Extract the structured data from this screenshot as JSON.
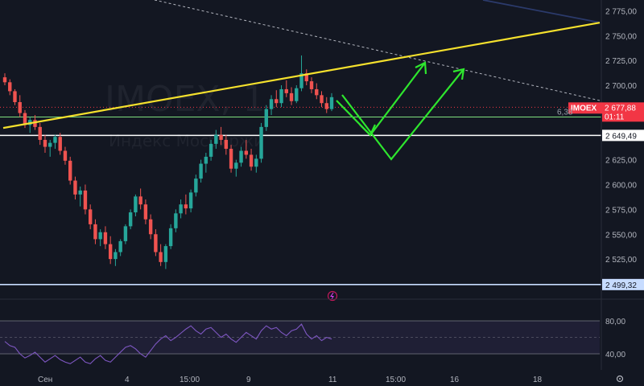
{
  "watermark": {
    "symbol": "IMOEX, 1",
    "subtitle": "Индекс Мосбиржи"
  },
  "price_axis": {
    "ticks": [
      "2 775,00",
      "2 750,00",
      "2 725,00",
      "2 700,00",
      "2 625,00",
      "2 600,00",
      "2 575,00",
      "2 550,00",
      "2 525,00"
    ],
    "tick_values": [
      2775,
      2750,
      2725,
      2700,
      2625,
      2600,
      2575,
      2550,
      2525
    ]
  },
  "rsi_axis": {
    "ticks": [
      "80,00",
      "40,00"
    ],
    "tick_values": [
      80,
      40
    ]
  },
  "time_axis": {
    "ticks": [
      "Сен",
      "4",
      "15:00",
      "9",
      "11",
      "15:00",
      "16",
      "18"
    ]
  },
  "current_price": {
    "symbol": "IMOEX",
    "value": "2 677,88",
    "countdown": "01:11",
    "value_num": 2677.88,
    "color": "#f23645"
  },
  "level_green": {
    "label": "6,38",
    "value": 2668,
    "color": "#7fe07f"
  },
  "level_white": {
    "label": "2 649,49",
    "value": 2649.49,
    "color": "#ffffff"
  },
  "level_blue": {
    "label": "2 499,32",
    "value": 2499.32,
    "color": "#c7dcff"
  },
  "settings_icon": "gear-icon",
  "event_icon": "lightning-icon",
  "colors": {
    "up": "#26a69a",
    "down": "#ef5350",
    "trendline": "#f5e12d",
    "arrows": "#2ee62e",
    "rsi": "#7e57c2",
    "dashed": "#b2b5be",
    "navy_line": "#2b3a6b"
  },
  "chart_data": {
    "type": "candlestick",
    "title": "",
    "xlabel": "",
    "ylabel": "",
    "ylim": [
      2505,
      2785
    ],
    "candles_ohlc": [
      [
        2708,
        2712,
        2700,
        2703
      ],
      [
        2703,
        2706,
        2690,
        2694
      ],
      [
        2694,
        2696,
        2680,
        2683
      ],
      [
        2683,
        2690,
        2668,
        2672
      ],
      [
        2672,
        2675,
        2657,
        2660
      ],
      [
        2660,
        2668,
        2652,
        2665
      ],
      [
        2665,
        2670,
        2655,
        2658
      ],
      [
        2658,
        2662,
        2640,
        2645
      ],
      [
        2645,
        2650,
        2632,
        2638
      ],
      [
        2638,
        2645,
        2628,
        2642
      ],
      [
        2642,
        2650,
        2636,
        2648
      ],
      [
        2648,
        2652,
        2630,
        2634
      ],
      [
        2634,
        2638,
        2620,
        2624
      ],
      [
        2624,
        2628,
        2600,
        2604
      ],
      [
        2604,
        2608,
        2585,
        2590
      ],
      [
        2590,
        2598,
        2578,
        2594
      ],
      [
        2594,
        2600,
        2570,
        2575
      ],
      [
        2575,
        2580,
        2555,
        2560
      ],
      [
        2560,
        2565,
        2540,
        2545
      ],
      [
        2545,
        2555,
        2538,
        2552
      ],
      [
        2552,
        2558,
        2535,
        2540
      ],
      [
        2540,
        2548,
        2520,
        2525
      ],
      [
        2525,
        2535,
        2518,
        2532
      ],
      [
        2532,
        2545,
        2528,
        2543
      ],
      [
        2543,
        2560,
        2540,
        2558
      ],
      [
        2558,
        2575,
        2555,
        2572
      ],
      [
        2572,
        2590,
        2568,
        2588
      ],
      [
        2588,
        2596,
        2575,
        2580
      ],
      [
        2580,
        2585,
        2560,
        2565
      ],
      [
        2565,
        2570,
        2545,
        2550
      ],
      [
        2550,
        2555,
        2528,
        2532
      ],
      [
        2532,
        2540,
        2518,
        2522
      ],
      [
        2522,
        2540,
        2515,
        2538
      ],
      [
        2538,
        2560,
        2535,
        2556
      ],
      [
        2556,
        2575,
        2552,
        2571
      ],
      [
        2571,
        2585,
        2566,
        2580
      ],
      [
        2580,
        2590,
        2570,
        2576
      ],
      [
        2576,
        2595,
        2572,
        2592
      ],
      [
        2592,
        2610,
        2588,
        2606
      ],
      [
        2606,
        2625,
        2602,
        2621
      ],
      [
        2621,
        2632,
        2612,
        2628
      ],
      [
        2628,
        2645,
        2624,
        2641
      ],
      [
        2641,
        2655,
        2636,
        2650
      ],
      [
        2650,
        2658,
        2640,
        2645
      ],
      [
        2645,
        2650,
        2630,
        2636
      ],
      [
        2636,
        2640,
        2612,
        2616
      ],
      [
        2616,
        2625,
        2608,
        2622
      ],
      [
        2622,
        2638,
        2618,
        2634
      ],
      [
        2634,
        2645,
        2626,
        2630
      ],
      [
        2630,
        2636,
        2614,
        2618
      ],
      [
        2618,
        2630,
        2612,
        2626
      ],
      [
        2626,
        2662,
        2622,
        2658
      ],
      [
        2658,
        2680,
        2654,
        2676
      ],
      [
        2676,
        2690,
        2670,
        2686
      ],
      [
        2686,
        2695,
        2678,
        2682
      ],
      [
        2682,
        2700,
        2678,
        2696
      ],
      [
        2696,
        2705,
        2688,
        2692
      ],
      [
        2692,
        2698,
        2680,
        2684
      ],
      [
        2684,
        2700,
        2682,
        2697
      ],
      [
        2697,
        2730,
        2694,
        2712
      ],
      [
        2712,
        2716,
        2700,
        2704
      ],
      [
        2704,
        2708,
        2692,
        2696
      ],
      [
        2696,
        2702,
        2686,
        2690
      ],
      [
        2690,
        2694,
        2678,
        2682
      ],
      [
        2682,
        2688,
        2672,
        2676
      ],
      [
        2676,
        2692,
        2674,
        2688
      ]
    ],
    "trendline": {
      "from": {
        "i": 0,
        "y": 2657
      },
      "to": {
        "i": 66,
        "y": 2763
      }
    },
    "rsi_values": [
      55,
      50,
      48,
      40,
      35,
      38,
      42,
      36,
      30,
      34,
      38,
      33,
      30,
      28,
      32,
      36,
      30,
      28,
      34,
      38,
      32,
      30,
      36,
      42,
      48,
      50,
      46,
      40,
      36,
      44,
      52,
      58,
      62,
      56,
      60,
      65,
      70,
      74,
      68,
      64,
      70,
      72,
      66,
      60,
      64,
      58,
      54,
      60,
      66,
      62,
      58,
      68,
      74,
      70,
      72,
      66,
      62,
      68,
      70,
      76,
      64,
      58,
      62,
      56,
      60,
      58
    ]
  }
}
